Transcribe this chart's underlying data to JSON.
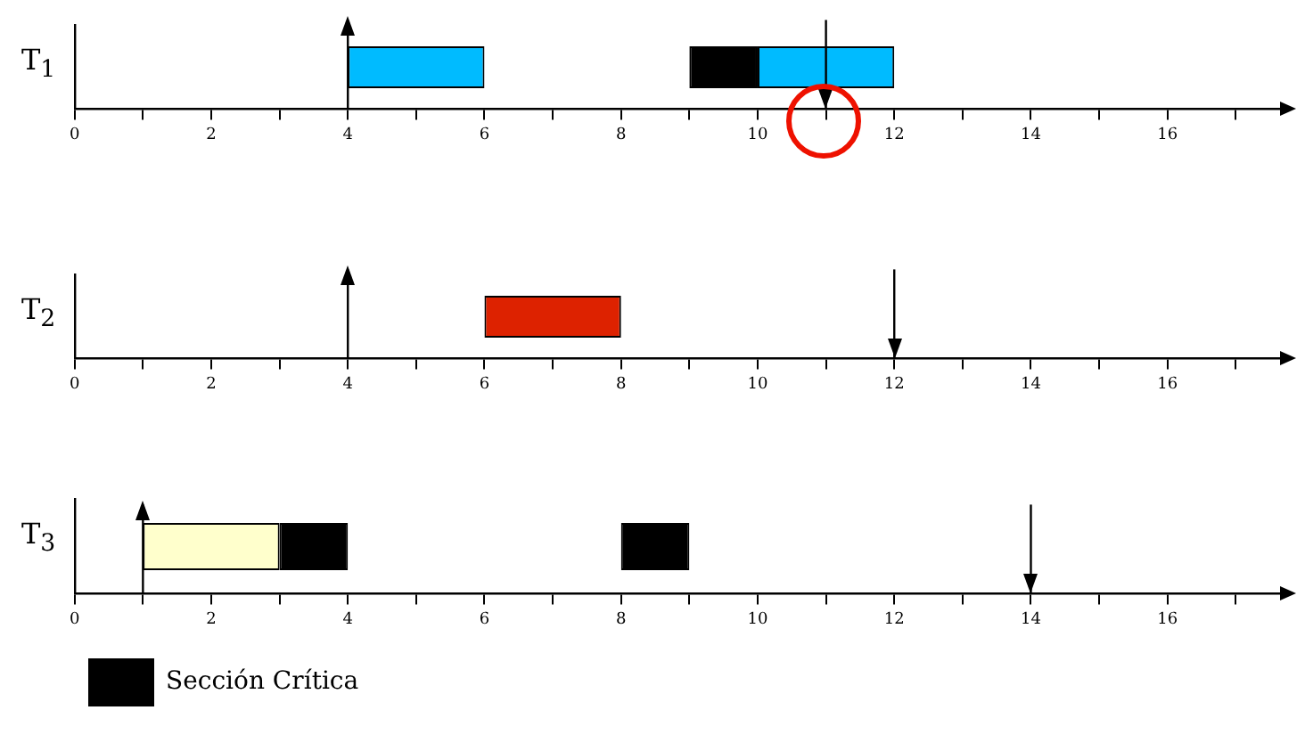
{
  "chart_data": [
    {
      "type": "bar",
      "orientation": "horizontal",
      "ylabel": "T$_{1}$",
      "categories": [
        null
      ],
      "xlim": [
        0,
        17.7
      ],
      "xticks": [
        0,
        {
          "value": 1,
          "label": null
        },
        2,
        {
          "value": 3,
          "label": null
        },
        4,
        {
          "value": 5,
          "label": null
        },
        6,
        {
          "value": 7,
          "label": null
        },
        8,
        {
          "value": 9,
          "label": null
        },
        10,
        {
          "value": 11,
          "label": null
        },
        12,
        {
          "value": 13,
          "label": null
        },
        14,
        {
          "value": 15,
          "label": null
        },
        16,
        {
          "value": 17,
          "label": null
        }
      ],
      "grid": false,
      "legend": false,
      "series": [
        {
          "color": "#00bbff",
          "base": [
            4
          ],
          "values": [
            2
          ]
        },
        {
          "color": "#000000",
          "base": [
            9
          ],
          "values": [
            1
          ]
        },
        {
          "color": "#00bbff",
          "base": [
            10
          ],
          "values": [
            2
          ]
        }
      ],
      "ref_lines": [
        {
          "axis": "x",
          "value": 4,
          "color": "#000000"
        },
        {
          "axis": "x",
          "value": 11,
          "color": "#000000"
        }
      ]
    },
    {
      "type": "bar",
      "orientation": "horizontal",
      "ylabel": "T$_{2}$",
      "categories": [
        null
      ],
      "xlim": [
        0,
        17.7
      ],
      "xticks": [
        0,
        {
          "value": 1,
          "label": null
        },
        2,
        {
          "value": 3,
          "label": null
        },
        4,
        {
          "value": 5,
          "label": null
        },
        6,
        {
          "value": 7,
          "label": null
        },
        8,
        {
          "value": 9,
          "label": null
        },
        10,
        {
          "value": 11,
          "label": null
        },
        12,
        {
          "value": 13,
          "label": null
        },
        14,
        {
          "value": 15,
          "label": null
        },
        16,
        {
          "value": 17,
          "label": null
        }
      ],
      "grid": false,
      "legend": false,
      "series": [
        {
          "color": "#dd2200",
          "base": [
            6
          ],
          "values": [
            2
          ]
        }
      ],
      "ref_lines": [
        {
          "axis": "x",
          "value": 4,
          "color": "#000000"
        },
        {
          "axis": "x",
          "value": 12,
          "color": "#000000"
        }
      ]
    },
    {
      "type": "bar",
      "orientation": "horizontal",
      "ylabel": "T$_{3}$",
      "categories": [
        null
      ],
      "xlim": [
        0,
        17.7
      ],
      "xticks": [
        0,
        {
          "value": 1,
          "label": null
        },
        2,
        {
          "value": 3,
          "label": null
        },
        4,
        {
          "value": 5,
          "label": null
        },
        6,
        {
          "value": 7,
          "label": null
        },
        8,
        {
          "value": 9,
          "label": null
        },
        10,
        {
          "value": 11,
          "label": null
        },
        12,
        {
          "value": 13,
          "label": null
        },
        14,
        {
          "value": 15,
          "label": null
        },
        16,
        {
          "value": 17,
          "label": null
        }
      ],
      "grid": false,
      "legend": "bottom left",
      "series": [
        {
          "color": "#ffffcc",
          "base": [
            1
          ],
          "values": [
            2
          ]
        },
        {
          "name": "Sección Crítica",
          "color": "#000000",
          "base": [
            3
          ],
          "values": [
            1
          ]
        },
        {
          "color": "#000000",
          "base": [
            8
          ],
          "values": [
            1
          ]
        }
      ],
      "ref_lines": [
        {
          "axis": "x",
          "value": 1,
          "color": "#000000"
        },
        {
          "axis": "x",
          "value": 14,
          "color": "#000000"
        }
      ]
    }
  ]
}
